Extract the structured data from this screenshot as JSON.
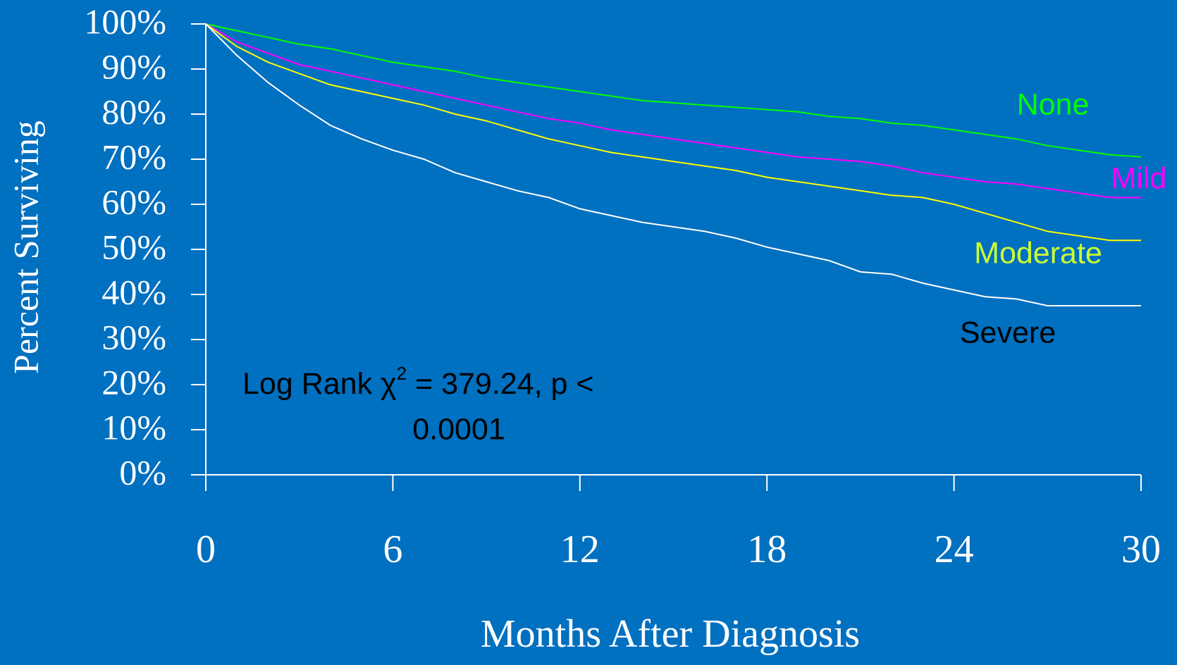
{
  "chart_data": {
    "type": "line",
    "x_label": "Months After Diagnosis",
    "y_label": "Percent Surviving",
    "x": [
      0,
      1,
      2,
      3,
      4,
      5,
      6,
      7,
      8,
      9,
      10,
      11,
      12,
      13,
      14,
      15,
      16,
      17,
      18,
      19,
      20,
      21,
      22,
      23,
      24,
      25,
      26,
      27,
      28,
      29,
      30
    ],
    "series": [
      {
        "name": "None",
        "color": "#00ff00",
        "label_color": "#00ff00",
        "values": [
          100,
          98.5,
          97,
          95.5,
          94.5,
          93,
          91.5,
          90.5,
          89.5,
          88,
          87,
          86,
          85,
          84,
          83,
          82.5,
          82,
          81.5,
          81,
          80.5,
          79.5,
          79,
          78,
          77.5,
          76.5,
          75.5,
          74.5,
          73,
          72,
          71,
          70.5
        ]
      },
      {
        "name": "Mild",
        "color": "#ff00ff",
        "label_color": "#ff00ff",
        "values": [
          100,
          96,
          93.5,
          91,
          89.5,
          88,
          86.5,
          85,
          83.5,
          82,
          80.5,
          79,
          78,
          76.5,
          75.5,
          74.5,
          73.5,
          72.5,
          71.5,
          70.5,
          70,
          69.5,
          68.5,
          67,
          66,
          65,
          64.5,
          63.5,
          62.5,
          61.5,
          61.5
        ]
      },
      {
        "name": "Moderate",
        "color": "#ffff00",
        "label_color": "#ccff33",
        "values": [
          100,
          95,
          91.5,
          89,
          86.5,
          85,
          83.5,
          82,
          80,
          78.5,
          76.5,
          74.5,
          73,
          71.5,
          70.5,
          69.5,
          68.5,
          67.5,
          66,
          65,
          64,
          63,
          62,
          61.5,
          60,
          58,
          56,
          54,
          53,
          52,
          52
        ]
      },
      {
        "name": "Severe",
        "color": "#ffffff",
        "label_color": "#000000",
        "values": [
          100,
          93,
          87,
          82,
          77.5,
          74.5,
          72,
          70,
          67,
          65,
          63,
          61.5,
          59,
          57.5,
          56,
          55,
          54,
          52.5,
          50.5,
          49,
          47.5,
          45,
          44.5,
          42.5,
          41,
          39.5,
          39,
          37.5,
          37.5,
          37.5,
          37.5
        ]
      }
    ],
    "annotation": [
      "Log Rank χ",
      "2",
      " = 379.24, p <",
      "0.0001"
    ],
    "xlim": [
      0,
      30
    ],
    "xticks": [
      0,
      6,
      12,
      18,
      24,
      30
    ],
    "ylim": [
      0,
      100
    ],
    "yticks": [
      {
        "value": 0,
        "label": "0%"
      },
      {
        "value": 10,
        "label": "10%"
      },
      {
        "value": 20,
        "label": "20%"
      },
      {
        "value": 30,
        "label": "30%"
      },
      {
        "value": 40,
        "label": "40%"
      },
      {
        "value": 50,
        "label": "50%"
      },
      {
        "value": 60,
        "label": "60%"
      },
      {
        "value": 70,
        "label": "70%"
      },
      {
        "value": 80,
        "label": "80%"
      },
      {
        "value": 90,
        "label": "90%"
      },
      {
        "value": 100,
        "label": "100%"
      }
    ],
    "grid": false,
    "background": "#0070c0"
  }
}
